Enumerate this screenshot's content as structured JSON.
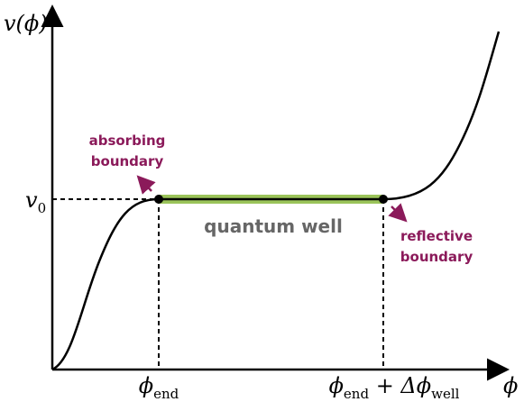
{
  "axes": {
    "y_label": "v(ϕ)",
    "x_label": "ϕ"
  },
  "levels": {
    "v0": {
      "base": "v",
      "sub": "0"
    }
  },
  "marks": {
    "phi_end": {
      "base": "ϕ",
      "sub": "end"
    },
    "phi_end_plus": {
      "base": "ϕ",
      "sub": "end",
      "op": " + Δϕ",
      "sub2": "well"
    }
  },
  "annotations": {
    "absorbing": [
      "absorbing",
      "boundary"
    ],
    "reflective": [
      "reflective",
      "boundary"
    ],
    "well": "quantum well"
  }
}
